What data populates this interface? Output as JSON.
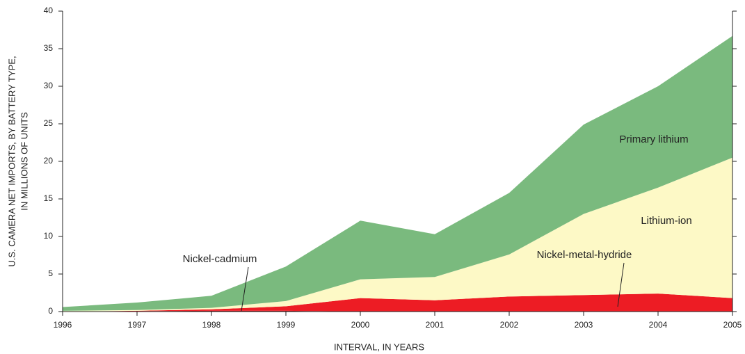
{
  "chart_data": {
    "type": "area",
    "stacked": true,
    "x": [
      1996,
      1997,
      1998,
      1999,
      2000,
      2001,
      2002,
      2003,
      2004,
      2005
    ],
    "series": [
      {
        "name": "Nickel-cadmium",
        "color": "#9e0b0f",
        "values": [
          0,
          0.05,
          0.1,
          0.1,
          0,
          0,
          0,
          0,
          0,
          0
        ]
      },
      {
        "name": "Nickel-metal-hydride",
        "color": "#ed1c24",
        "values": [
          0,
          0.05,
          0.2,
          0.6,
          1.8,
          1.5,
          2.0,
          2.2,
          2.4,
          1.8
        ]
      },
      {
        "name": "Lithium-ion",
        "color": "#fdf9c6",
        "values": [
          0.1,
          0.1,
          0.2,
          0.7,
          2.5,
          3.1,
          5.6,
          10.8,
          14.1,
          18.7
        ]
      },
      {
        "name": "Primary lithium",
        "color": "#7aba7e",
        "values": [
          0.5,
          1.0,
          1.6,
          4.6,
          7.8,
          5.7,
          8.2,
          11.9,
          13.5,
          16.2
        ]
      }
    ],
    "xlabel": "INTERVAL, IN YEARS",
    "ylabel": [
      "U.S. CAMERA NET IMPORTS, BY BATTERY TYPE,",
      "IN MILLIONS OF UNITS"
    ],
    "xlim": [
      1996,
      2005
    ],
    "xticks": [
      1996,
      1997,
      1998,
      1999,
      2000,
      2001,
      2002,
      2003,
      2004,
      2005
    ],
    "ylim": [
      0,
      40
    ],
    "yticks": [
      0,
      5,
      10,
      15,
      20,
      25,
      30,
      35,
      40
    ]
  }
}
